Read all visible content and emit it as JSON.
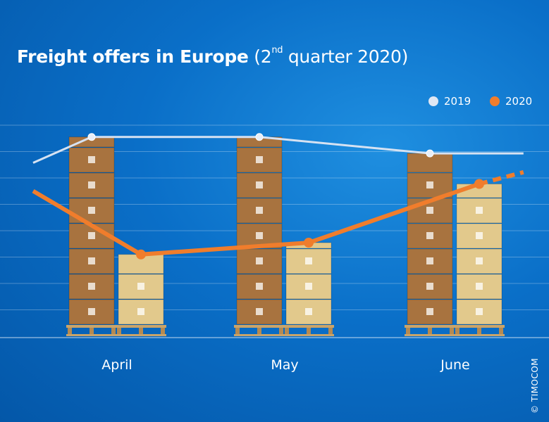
{
  "title": {
    "main": "Freight offers in Europe",
    "paren_open": "(2",
    "superscript": "nd",
    "paren_rest": " quarter 2020)"
  },
  "legend": {
    "series_2019": "2019",
    "series_2020": "2020"
  },
  "copyright": "© TIMOCOM",
  "colors": {
    "background": "#0a6fc8",
    "line_2019": "#d6e2f2",
    "line_2020": "#f07d2c",
    "box_dark": "#a8733f",
    "box_light": "#e2c98c"
  },
  "chart_data": {
    "type": "bar",
    "categories": [
      "April",
      "May",
      "June"
    ],
    "series": [
      {
        "name": "2019",
        "values": [
          8,
          8,
          7.3
        ]
      },
      {
        "name": "2020",
        "values": [
          3,
          3.5,
          6
        ]
      }
    ],
    "lines": {
      "2019": [
        [
          -0.5,
          6.9
        ],
        [
          0,
          8
        ],
        [
          1,
          8
        ],
        [
          2,
          7.3
        ],
        [
          2.4,
          7.3
        ]
      ],
      "2020": [
        [
          -0.5,
          5.7
        ],
        [
          0,
          3
        ],
        [
          1,
          3.5
        ],
        [
          2,
          6
        ],
        [
          2.4,
          6.5
        ]
      ],
      "2020_dashed_from": 2
    },
    "xlabel": "",
    "ylabel": "",
    "ylim": [
      0,
      8.5
    ],
    "grid": true,
    "legend_position": "top-right"
  }
}
